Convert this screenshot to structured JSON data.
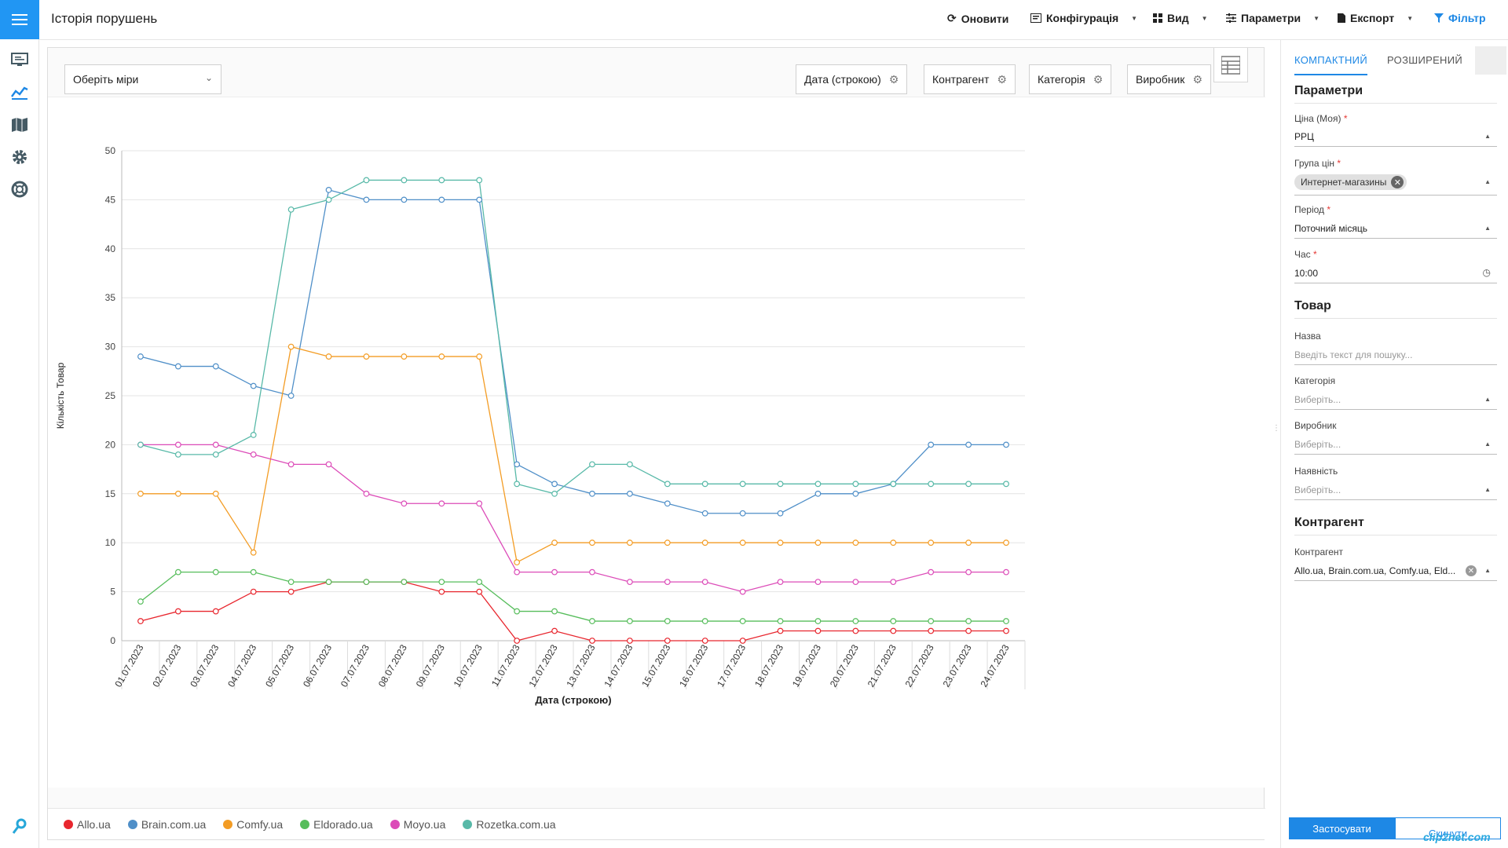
{
  "header": {
    "title": "Історія порушень",
    "refresh_label": "Оновити",
    "config_label": "Конфігурація",
    "view_label": "Вид",
    "params_label": "Параметри",
    "export_label": "Експорт",
    "filter_label": "Фільтр",
    "accent": "#2196f3"
  },
  "sidebar": {
    "icons": [
      "menu-icon",
      "monitor-icon",
      "analytics-icon",
      "map-icon",
      "gear-icon",
      "lifebuoy-icon",
      "logo-icon"
    ]
  },
  "toolbar": {
    "measure_placeholder": "Оберіть міри",
    "dimensions": [
      "Дата (строкою)",
      "Контрагент",
      "Категорія",
      "Виробник"
    ]
  },
  "chart_data": {
    "type": "line",
    "xlabel": "Дата (строкою)",
    "ylabel": "Кількість Товар",
    "ylim": [
      0,
      50
    ],
    "yticks": [
      0,
      5,
      10,
      15,
      20,
      25,
      30,
      35,
      40,
      45,
      50
    ],
    "grid": true,
    "legend_position": "bottom-left",
    "categories": [
      "01.07.2023",
      "02.07.2023",
      "03.07.2023",
      "04.07.2023",
      "05.07.2023",
      "06.07.2023",
      "07.07.2023",
      "08.07.2023",
      "09.07.2023",
      "10.07.2023",
      "11.07.2023",
      "12.07.2023",
      "13.07.2023",
      "14.07.2023",
      "15.07.2023",
      "16.07.2023",
      "17.07.2023",
      "18.07.2023",
      "19.07.2023",
      "20.07.2023",
      "21.07.2023",
      "22.07.2023",
      "23.07.2023",
      "24.07.2023"
    ],
    "series": [
      {
        "name": "Allo.ua",
        "color": "#e8262e",
        "values": [
          2,
          3,
          3,
          5,
          5,
          6,
          6,
          6,
          5,
          5,
          0,
          1,
          0,
          0,
          0,
          0,
          0,
          1,
          1,
          1,
          1,
          1,
          1,
          1
        ]
      },
      {
        "name": "Brain.com.ua",
        "color": "#4f8fc8",
        "values": [
          29,
          28,
          28,
          26,
          25,
          46,
          45,
          45,
          45,
          45,
          18,
          16,
          15,
          15,
          14,
          13,
          13,
          13,
          15,
          15,
          16,
          20,
          20,
          20
        ]
      },
      {
        "name": "Comfy.ua",
        "color": "#f39c24",
        "values": [
          15,
          15,
          15,
          9,
          30,
          29,
          29,
          29,
          29,
          29,
          8,
          10,
          10,
          10,
          10,
          10,
          10,
          10,
          10,
          10,
          10,
          10,
          10,
          10
        ]
      },
      {
        "name": "Eldorado.ua",
        "color": "#56bd5b",
        "values": [
          4,
          7,
          7,
          7,
          6,
          6,
          6,
          6,
          6,
          6,
          3,
          3,
          2,
          2,
          2,
          2,
          2,
          2,
          2,
          2,
          2,
          2,
          2,
          2
        ]
      },
      {
        "name": "Moyo.ua",
        "color": "#dc4bb8",
        "values": [
          20,
          20,
          20,
          19,
          18,
          18,
          15,
          14,
          14,
          14,
          7,
          7,
          7,
          6,
          6,
          6,
          5,
          6,
          6,
          6,
          6,
          7,
          7,
          7
        ]
      },
      {
        "name": "Rozetka.com.ua",
        "color": "#58b9a8",
        "values": [
          20,
          19,
          19,
          21,
          44,
          45,
          47,
          47,
          47,
          47,
          16,
          15,
          18,
          18,
          16,
          16,
          16,
          16,
          16,
          16,
          16,
          16,
          16,
          16
        ]
      }
    ]
  },
  "panel": {
    "tab_compact": "КОМПАКТНИЙ",
    "tab_extended": "РОЗШИРЕНИЙ",
    "params_title": "Параметри",
    "price_label": "Ціна (Моя)",
    "price_value": "РРЦ",
    "price_group_label": "Група цін",
    "price_group_chip": "Интернет-магазины",
    "period_label": "Період",
    "period_value": "Поточний місяць",
    "time_label": "Час",
    "time_value": "10:00",
    "product_title": "Товар",
    "name_label": "Назва",
    "name_placeholder": "Введіть текст для пошуку...",
    "category_label": "Категорія",
    "category_placeholder": "Виберіть...",
    "maker_label": "Виробник",
    "maker_placeholder": "Виберіть...",
    "stock_label": "Наявність",
    "stock_placeholder": "Виберіть...",
    "contractor_title": "Контрагент",
    "contractor_label": "Контрагент",
    "contractor_value": "Allo.ua, Brain.com.ua, Comfy.ua, Eld...",
    "required_mark": "*",
    "apply_label": "Застосувати",
    "reset_label": "Скинути"
  },
  "watermark": "clip2net.com"
}
